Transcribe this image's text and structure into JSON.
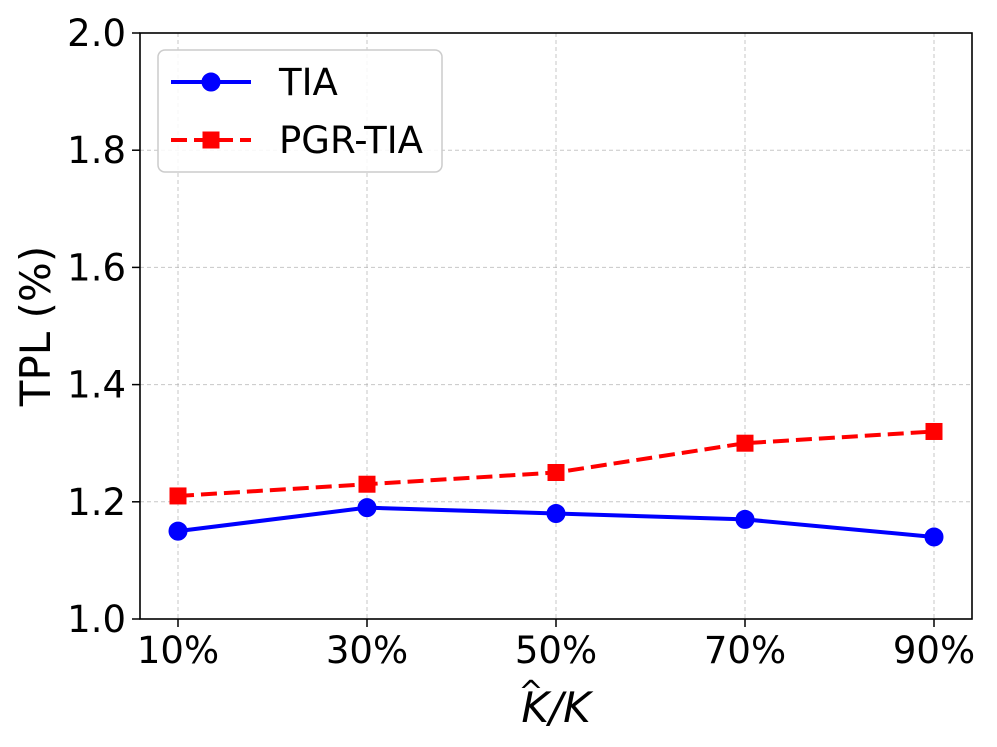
{
  "chart_data": {
    "type": "line",
    "categories": [
      "10%",
      "30%",
      "50%",
      "70%",
      "90%"
    ],
    "series": [
      {
        "name": "TIA",
        "values": [
          1.15,
          1.19,
          1.18,
          1.17,
          1.14
        ],
        "color": "#0000ff",
        "marker": "circle",
        "line_style": "solid"
      },
      {
        "name": "PGR-TIA",
        "values": [
          1.21,
          1.23,
          1.25,
          1.3,
          1.32
        ],
        "color": "#ff0000",
        "marker": "square",
        "line_style": "dashed"
      }
    ],
    "ylabel": "TPL (%)",
    "xlabel_main": "K",
    "xlabel_hat": "^",
    "xlabel_rest": "/K",
    "ylim": [
      1.0,
      2.0
    ],
    "yticks": [
      "1.0",
      "1.2",
      "1.4",
      "1.6",
      "1.8",
      "2.0"
    ],
    "grid": true,
    "legend_position": "top-left"
  }
}
